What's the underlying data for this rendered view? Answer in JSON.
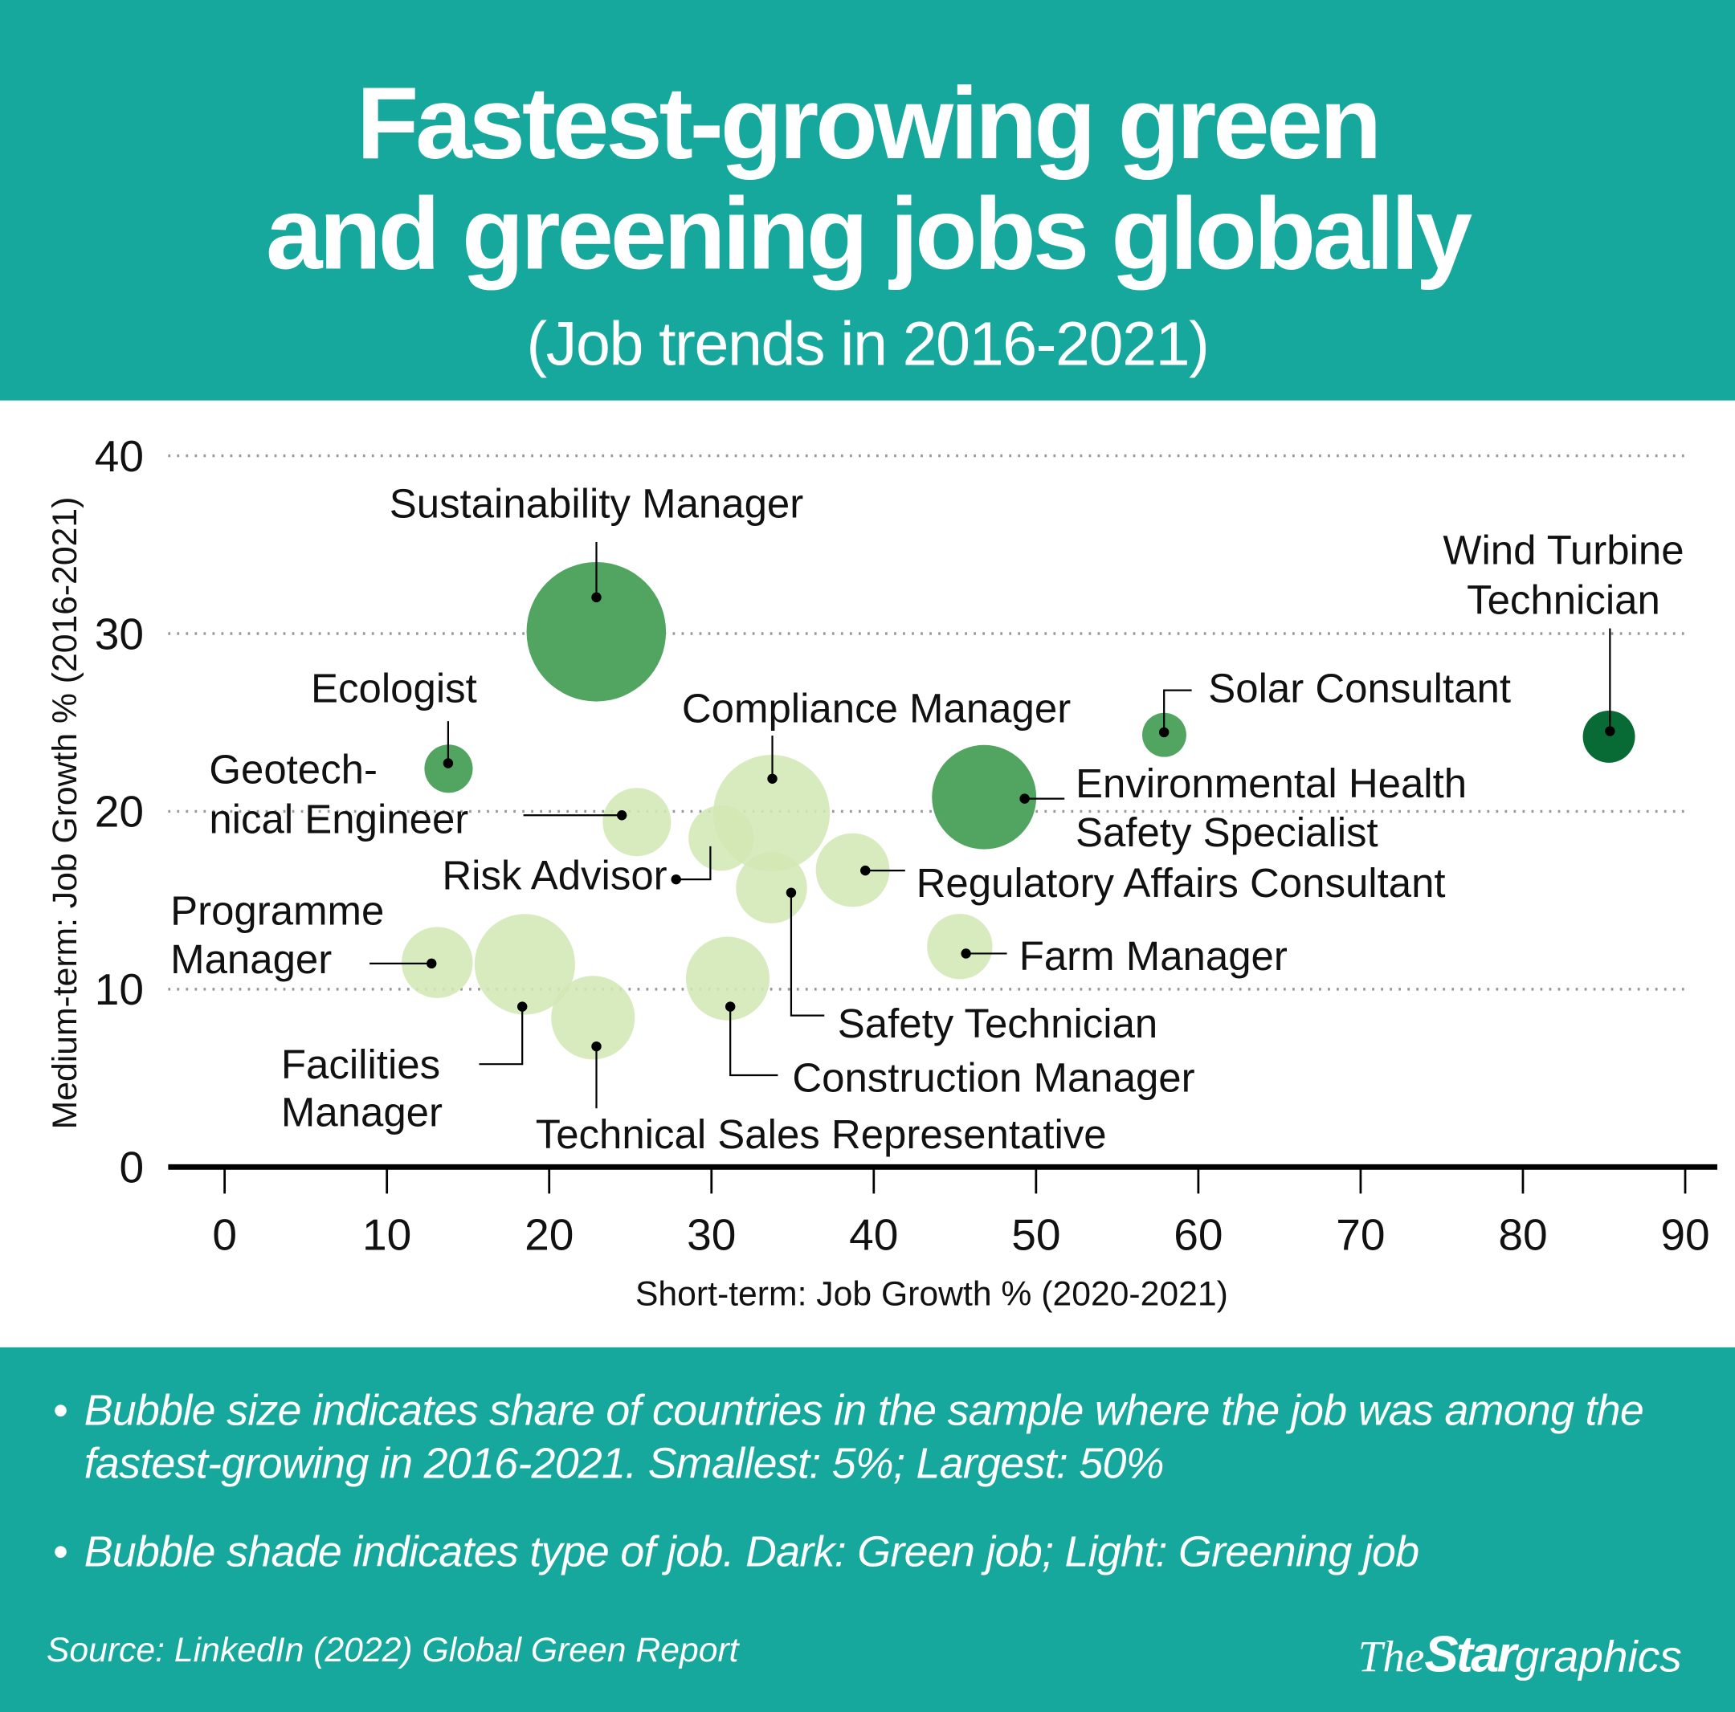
{
  "header": {
    "title_line1": "Fastest-growing green",
    "title_line2": "and greening jobs globally",
    "subtitle": "(Job trends in 2016-2021)"
  },
  "colors": {
    "background_band": "#17a89d",
    "green_job_dark": "#086b35",
    "green_job": "#52a461",
    "greening_job": "#d3e8b5"
  },
  "chart_data": {
    "type": "scatter",
    "subtype": "bubble",
    "xlabel": "Short-term: Job Growth % (2020-2021)",
    "ylabel": "Medium-term: Job Growth % (2016-2021)",
    "xlim": [
      0,
      90
    ],
    "ylim": [
      0,
      40
    ],
    "xticks": [
      "0",
      "10",
      "20",
      "30",
      "40",
      "50",
      "60",
      "70",
      "80",
      "90"
    ],
    "yticks": [
      "0",
      "10",
      "20",
      "30",
      "40"
    ],
    "grid": "horizontal dotted",
    "points": [
      {
        "label_lines": [
          "Sustainability Manager"
        ],
        "x": 22.9,
        "y": 30.1,
        "share": 50,
        "type": "green",
        "shade": "#52a461"
      },
      {
        "label_lines": [
          "Ecologist"
        ],
        "x": 13.8,
        "y": 22.4,
        "share": 6,
        "type": "green",
        "shade": "#52a461"
      },
      {
        "label_lines": [
          "Wind Turbine",
          "Technician"
        ],
        "x": 85.3,
        "y": 24.2,
        "share": 7,
        "type": "green",
        "shade": "#086b35"
      },
      {
        "label_lines": [
          "Solar Consultant"
        ],
        "x": 57.9,
        "y": 24.3,
        "share": 5,
        "type": "green",
        "shade": "#52a461"
      },
      {
        "label_lines": [
          "Environmental Health",
          "Safety Specialist"
        ],
        "x": 46.8,
        "y": 20.8,
        "share": 28,
        "type": "green",
        "shade": "#52a461"
      },
      {
        "label_lines": [
          "Compliance Manager"
        ],
        "x": 33.7,
        "y": 19.9,
        "share": 35,
        "type": "greening",
        "shade": "#d3e8b5"
      },
      {
        "label_lines": [
          "Geotech-",
          "nical Engineer"
        ],
        "x": 25.4,
        "y": 19.4,
        "share": 12,
        "type": "greening",
        "shade": "#d3e8b5"
      },
      {
        "label_lines": [
          "Risk Advisor"
        ],
        "x": 30.6,
        "y": 18.5,
        "share": 11,
        "type": "greening",
        "shade": "#d3e8b5"
      },
      {
        "label_lines": [
          "Safety Technician"
        ],
        "x": 33.7,
        "y": 15.7,
        "share": 13,
        "type": "greening",
        "shade": "#d3e8b5"
      },
      {
        "label_lines": [
          "Regulatory Affairs Consultant"
        ],
        "x": 38.7,
        "y": 16.7,
        "share": 14,
        "type": "greening",
        "shade": "#d3e8b5"
      },
      {
        "label_lines": [
          "Farm Manager"
        ],
        "x": 45.3,
        "y": 12.4,
        "share": 11,
        "type": "greening",
        "shade": "#d3e8b5"
      },
      {
        "label_lines": [
          "Programme",
          "Manager"
        ],
        "x": 13.1,
        "y": 11.5,
        "share": 13,
        "type": "greening",
        "shade": "#d3e8b5"
      },
      {
        "label_lines": [
          "Facilities",
          "Manager"
        ],
        "x": 18.5,
        "y": 11.4,
        "share": 26,
        "type": "greening",
        "shade": "#d3e8b5"
      },
      {
        "label_lines": [
          "Technical Sales Representative"
        ],
        "x": 22.7,
        "y": 8.4,
        "share": 18,
        "type": "greening",
        "shade": "#d3e8b5"
      },
      {
        "label_lines": [
          "Construction Manager"
        ],
        "x": 31.0,
        "y": 10.6,
        "share": 18,
        "type": "greening",
        "shade": "#d3e8b5"
      }
    ]
  },
  "notes": {
    "bullet_symbol": "•",
    "note1": "Bubble size indicates share of countries in the sample where the job was among the fastest-growing in 2016-2021. Smallest: 5%; Largest: 50%",
    "note2": "Bubble shade indicates type of job. Dark: Green job; Light: Greening job"
  },
  "footer": {
    "source": "Source: LinkedIn (2022) Global Green Report",
    "logo_the": "The",
    "logo_star": "Star",
    "logo_graphics": "graphics"
  }
}
